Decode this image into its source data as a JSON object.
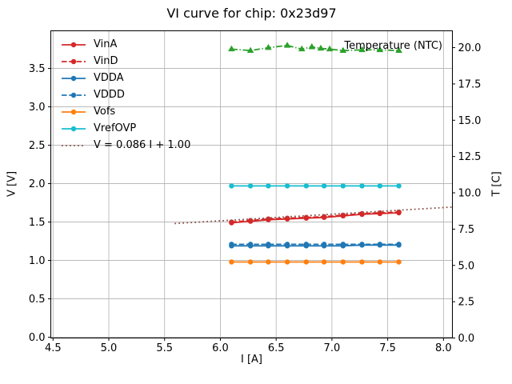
{
  "title": "VI curve for chip: 0x23d97",
  "annotation": "Temperature (NTC)",
  "axes": {
    "x_label": "I [A]",
    "y_left_label": "V [V]",
    "y_right_label": "T [C]",
    "x_ticks": [
      "4.5",
      "5.0",
      "5.5",
      "6.0",
      "6.5",
      "7.0",
      "7.5",
      "8.0"
    ],
    "y_left_ticks": [
      "0.0",
      "0.5",
      "1.0",
      "1.5",
      "2.0",
      "2.5",
      "3.0",
      "3.5"
    ],
    "y_right_ticks": [
      "0.0",
      "2.5",
      "5.0",
      "7.5",
      "10.0",
      "12.5",
      "15.0",
      "17.5",
      "20.0"
    ]
  },
  "colors": {
    "red": "#d62728",
    "blue": "#1f77b4",
    "orange": "#ff7f0e",
    "cyan": "#17becf",
    "green": "#2ca02c",
    "brown": "#8c564b",
    "grid": "#b0b0b0",
    "text": "#000000"
  },
  "chart_data": {
    "type": "line",
    "title": "VI curve for chip: 0x23d97",
    "xlabel": "I [A]",
    "ylabel_left": "V [V]",
    "ylabel_right": "T [C]",
    "xlim": [
      4.48,
      8.08
    ],
    "ylim_left": [
      -0.01,
      3.99
    ],
    "ylim_right": [
      0,
      21.16
    ],
    "grid": true,
    "legend_position": "upper left",
    "x": [
      6.1,
      6.27,
      6.43,
      6.6,
      6.77,
      6.93,
      7.1,
      7.27,
      7.43,
      7.6
    ],
    "series": [
      {
        "name": "VinA",
        "axis": "left",
        "color": "#d62728",
        "style": "solid",
        "marker": "circle",
        "values": [
          1.49,
          1.51,
          1.53,
          1.54,
          1.55,
          1.56,
          1.58,
          1.6,
          1.61,
          1.62
        ]
      },
      {
        "name": "VinD",
        "axis": "left",
        "color": "#d62728",
        "style": "dashed",
        "marker": "circle",
        "values": [
          1.5,
          1.52,
          1.54,
          1.55,
          1.56,
          1.57,
          1.59,
          1.61,
          1.62,
          1.63
        ]
      },
      {
        "name": "VDDA",
        "axis": "left",
        "color": "#1f77b4",
        "style": "solid",
        "marker": "circle",
        "values": [
          1.19,
          1.19,
          1.19,
          1.19,
          1.19,
          1.19,
          1.19,
          1.2,
          1.2,
          1.2
        ]
      },
      {
        "name": "VDDD",
        "axis": "left",
        "color": "#1f77b4",
        "style": "dashed",
        "marker": "circle",
        "values": [
          1.21,
          1.21,
          1.21,
          1.21,
          1.21,
          1.21,
          1.21,
          1.21,
          1.21,
          1.21
        ]
      },
      {
        "name": "Vofs",
        "axis": "left",
        "color": "#ff7f0e",
        "style": "solid",
        "marker": "circle",
        "values": [
          0.98,
          0.98,
          0.98,
          0.98,
          0.98,
          0.98,
          0.98,
          0.98,
          0.98,
          0.98
        ]
      },
      {
        "name": "VrefOVP",
        "axis": "left",
        "color": "#17becf",
        "style": "solid",
        "marker": "circle",
        "values": [
          1.97,
          1.97,
          1.97,
          1.97,
          1.97,
          1.97,
          1.97,
          1.97,
          1.97,
          1.97
        ]
      },
      {
        "name": "Temperature (NTC)",
        "axis": "right",
        "color": "#2ca02c",
        "style": "dashdot",
        "marker": "triangle",
        "in_legend": false,
        "x": [
          6.1,
          6.27,
          6.43,
          6.6,
          6.73,
          6.82,
          6.9,
          6.98,
          7.1,
          7.27,
          7.43,
          7.6
        ],
        "values": [
          19.9,
          19.8,
          20.0,
          20.15,
          19.9,
          20.05,
          19.95,
          19.9,
          19.8,
          19.85,
          19.85,
          19.8
        ]
      },
      {
        "name": "V = 0.086 I + 1.00",
        "axis": "left",
        "color": "#8c564b",
        "style": "dotted",
        "marker": "none",
        "x": [
          5.59,
          8.08
        ],
        "values": [
          1.481,
          1.695
        ],
        "fit": {
          "slope": 0.086,
          "intercept": 1.0
        }
      }
    ],
    "legend": [
      "VinA",
      "VinD",
      "VDDA",
      "VDDD",
      "Vofs",
      "VrefOVP",
      "V = 0.086 I + 1.00"
    ]
  }
}
